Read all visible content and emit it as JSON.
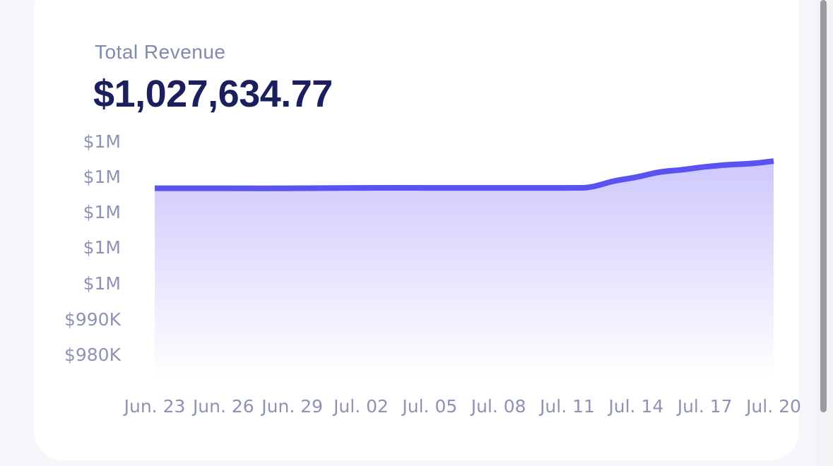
{
  "card": {
    "title": "Total Revenue",
    "amount": "$1,027,634.77"
  },
  "colors": {
    "line": "#5b52f2",
    "fill_top": "#cdc8fb",
    "fill_bottom": "#ffffff",
    "title": "#8189ad",
    "amount": "#1b1f5e",
    "ticks": "#8c93b5"
  },
  "chart_data": {
    "type": "area",
    "title": "",
    "xlabel": "",
    "ylabel": "",
    "x_tick_labels": [
      "Jun. 23",
      "Jun. 26",
      "Jun. 29",
      "Jul. 02",
      "Jul. 05",
      "Jul. 08",
      "Jul. 11",
      "Jul. 14",
      "Jul. 17",
      "Jul. 20"
    ],
    "y_tick_labels": [
      "$1M",
      "$1M",
      "$1M",
      "$1M",
      "$1M",
      "$990K",
      "$980K"
    ],
    "ylim": [
      975000,
      1035000
    ],
    "x": [
      "Jun. 23",
      "Jun. 26",
      "Jun. 29",
      "Jul. 02",
      "Jul. 05",
      "Jul. 08",
      "Jul. 11",
      "Jul. 12",
      "Jul. 13",
      "Jul. 14",
      "Jul. 15",
      "Jul. 16",
      "Jul. 17",
      "Jul. 18",
      "Jul. 19",
      "Jul. 20"
    ],
    "series": [
      {
        "values": [
          1021000,
          1021000,
          1021000,
          1021100,
          1021100,
          1021100,
          1021100,
          1021300,
          1022700,
          1023700,
          1024900,
          1025500,
          1026200,
          1026700,
          1027000,
          1027600
        ]
      }
    ],
    "grid": false,
    "legend": "none"
  }
}
